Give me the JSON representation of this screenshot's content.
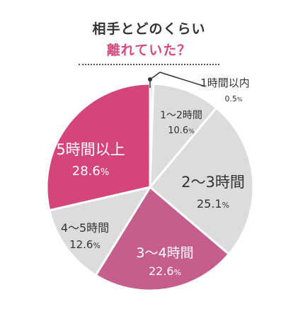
{
  "title": {
    "line1": "相手とどのくらい",
    "line2": "離れていた？"
  },
  "colors": {
    "accent": "#d44b7f",
    "slice_gray": "#dcdcdc",
    "slice_pink_dark": "#d4457a",
    "slice_pink_mid": "#c55d8d",
    "title_text": "#333333"
  },
  "chart_data": {
    "type": "pie",
    "title": "相手とどのくらい離れていた？",
    "start": "12 o'clock, clockwise",
    "slices": [
      {
        "label": "1時間以内",
        "value": 0.5,
        "value_text": "0.5",
        "unit": "%",
        "color": "#dcdcdc"
      },
      {
        "label": "1～2時間",
        "value": 10.6,
        "value_text": "10.6",
        "unit": "%",
        "color": "#dcdcdc"
      },
      {
        "label": "2～3時間",
        "value": 25.1,
        "value_text": "25.1",
        "unit": "%",
        "color": "#dcdcdc"
      },
      {
        "label": "3～4時間",
        "value": 22.6,
        "value_text": "22.6",
        "unit": "%",
        "color": "#c55d8d"
      },
      {
        "label": "4～5時間",
        "value": 12.6,
        "value_text": "12.6",
        "unit": "%",
        "color": "#dcdcdc"
      },
      {
        "label": "5時間以上",
        "value": 28.6,
        "value_text": "28.6",
        "unit": "%",
        "color": "#d4457a"
      }
    ]
  }
}
